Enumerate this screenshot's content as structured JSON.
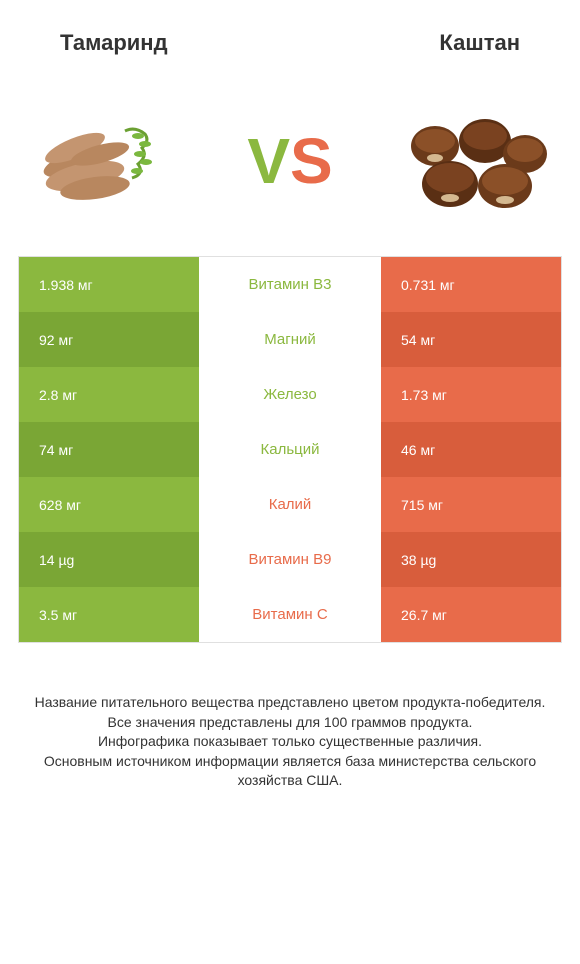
{
  "header": {
    "left": "Тамаринд",
    "right": "Каштан"
  },
  "vs": {
    "v": "V",
    "s": "S"
  },
  "colors": {
    "green": "#8bb83f",
    "orange": "#e86b4a",
    "green_dark": "#7aa635",
    "orange_dark": "#d85d3c"
  },
  "rows": [
    {
      "left": "1.938 мг",
      "middle": "Витамин B3",
      "right": "0.731 мг",
      "winner": "green"
    },
    {
      "left": "92 мг",
      "middle": "Магний",
      "right": "54 мг",
      "winner": "green"
    },
    {
      "left": "2.8 мг",
      "middle": "Железо",
      "right": "1.73 мг",
      "winner": "green"
    },
    {
      "left": "74 мг",
      "middle": "Кальций",
      "right": "46 мг",
      "winner": "green"
    },
    {
      "left": "628 мг",
      "middle": "Калий",
      "right": "715 мг",
      "winner": "orange"
    },
    {
      "left": "14 µg",
      "middle": "Витамин B9",
      "right": "38 µg",
      "winner": "orange"
    },
    {
      "left": "3.5 мг",
      "middle": "Витамин C",
      "right": "26.7 мг",
      "winner": "orange"
    }
  ],
  "footer": "Название питательного вещества представлено цветом продукта-победителя.\nВсе значения представлены для 100 граммов продукта.\nИнфографика показывает только существенные различия.\nОсновным источником информации является база министерства сельского хозяйства США."
}
